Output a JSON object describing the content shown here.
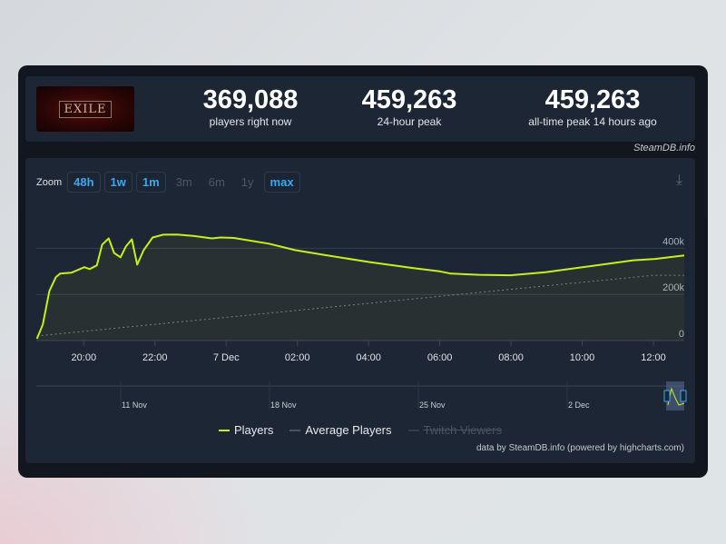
{
  "header": {
    "logo_text": "EXILE",
    "stats": [
      {
        "value": "369,088",
        "label": "players right now"
      },
      {
        "value": "459,263",
        "label": "24-hour peak"
      },
      {
        "value": "459,263",
        "label": "all-time peak 14 hours ago"
      }
    ],
    "credit": "SteamDB.info"
  },
  "toolbar": {
    "zoom_label": "Zoom",
    "ranges": [
      {
        "label": "48h",
        "enabled": true
      },
      {
        "label": "1w",
        "enabled": true
      },
      {
        "label": "1m",
        "enabled": true
      },
      {
        "label": "3m",
        "enabled": false
      },
      {
        "label": "6m",
        "enabled": false
      },
      {
        "label": "1y",
        "enabled": false
      },
      {
        "label": "max",
        "enabled": true
      }
    ],
    "download_icon": "download-icon"
  },
  "colors": {
    "players": "#c6f01a",
    "average": "#6b7380",
    "accent": "#39a9f0"
  },
  "chart_data": {
    "type": "line",
    "ylim": [
      0,
      500000
    ],
    "yticks": [
      {
        "value": 0,
        "label": "0"
      },
      {
        "value": 200000,
        "label": "200k"
      },
      {
        "value": 400000,
        "label": "400k"
      }
    ],
    "xticks": [
      {
        "t": "6 Dec 20:00",
        "label": "20:00"
      },
      {
        "t": "6 Dec 22:00",
        "label": "22:00"
      },
      {
        "t": "7 Dec 00:00",
        "label": "7 Dec"
      },
      {
        "t": "7 Dec 02:00",
        "label": "02:00"
      },
      {
        "t": "7 Dec 04:00",
        "label": "04:00"
      },
      {
        "t": "7 Dec 06:00",
        "label": "06:00"
      },
      {
        "t": "7 Dec 08:00",
        "label": "08:00"
      },
      {
        "t": "7 Dec 10:00",
        "label": "10:00"
      },
      {
        "t": "7 Dec 12:00",
        "label": "12:00"
      }
    ],
    "xlim": [
      "6 Dec 18:40",
      "7 Dec 12:52"
    ],
    "grid": true,
    "series": [
      {
        "name": "Players",
        "points": [
          [
            "6 Dec 18:41",
            8000
          ],
          [
            "6 Dec 18:51",
            70000
          ],
          [
            "6 Dec 19:02",
            215000
          ],
          [
            "6 Dec 19:13",
            275000
          ],
          [
            "6 Dec 19:20",
            290000
          ],
          [
            "6 Dec 19:39",
            294000
          ],
          [
            "6 Dec 20:01",
            318000
          ],
          [
            "6 Dec 20:10",
            310000
          ],
          [
            "6 Dec 20:22",
            326000
          ],
          [
            "6 Dec 20:31",
            416000
          ],
          [
            "6 Dec 20:42",
            443000
          ],
          [
            "6 Dec 20:51",
            380000
          ],
          [
            "6 Dec 21:02",
            361000
          ],
          [
            "6 Dec 21:11",
            408000
          ],
          [
            "6 Dec 21:21",
            439000
          ],
          [
            "6 Dec 21:30",
            329000
          ],
          [
            "6 Dec 21:41",
            392000
          ],
          [
            "6 Dec 21:56",
            447000
          ],
          [
            "6 Dec 22:14",
            459000
          ],
          [
            "6 Dec 22:37",
            459263
          ],
          [
            "6 Dec 23:06",
            453000
          ],
          [
            "6 Dec 23:36",
            443000
          ],
          [
            "6 Dec 23:50",
            447000
          ],
          [
            "7 Dec 00:13",
            445000
          ],
          [
            "7 Dec 01:12",
            420000
          ],
          [
            "7 Dec 01:56",
            392000
          ],
          [
            "7 Dec 02:48",
            370000
          ],
          [
            "7 Dec 04:02",
            340000
          ],
          [
            "7 Dec 05:16",
            314000
          ],
          [
            "7 Dec 06:00",
            300000
          ],
          [
            "7 Dec 06:19",
            290000
          ],
          [
            "7 Dec 07:07",
            285000
          ],
          [
            "7 Dec 07:59",
            283000
          ],
          [
            "7 Dec 08:58",
            296000
          ],
          [
            "7 Dec 10:12",
            322000
          ],
          [
            "7 Dec 11:26",
            348000
          ],
          [
            "7 Dec 12:03",
            354000
          ],
          [
            "7 Dec 12:52",
            369088
          ]
        ]
      },
      {
        "name": "Average Players",
        "points": [
          [
            "6 Dec 18:41",
            20000
          ],
          [
            "7 Dec 12:00",
            283000
          ],
          [
            "7 Dec 12:52",
            283000
          ]
        ]
      },
      {
        "name": "Twitch Viewers",
        "points": [],
        "hidden": true
      }
    ],
    "navigator": {
      "labels": [
        "11 Nov",
        "18 Nov",
        "25 Nov",
        "2 Dec"
      ]
    }
  },
  "footer": "data by SteamDB.info (powered by highcharts.com)"
}
